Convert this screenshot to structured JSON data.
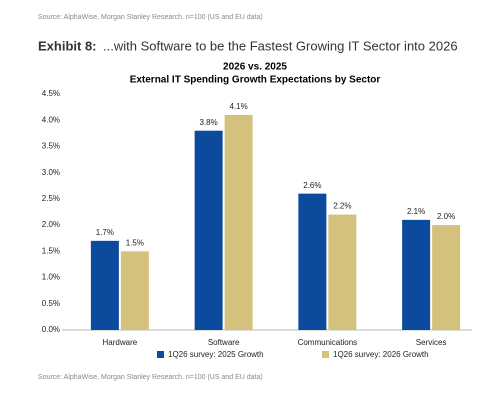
{
  "source_top": "Source: AlphaWise, Morgan Stanley Research. n=100 (US and EU data)",
  "exhibit_label": "Exhibit 8:",
  "exhibit_title": "...with Software to be the Fastest Growing IT Sector into 2026",
  "chart_data": {
    "type": "bar",
    "title": "2026 vs. 2025",
    "subtitle": "External IT Spending Growth Expectations by Sector",
    "categories": [
      "Hardware",
      "Software",
      "Communications",
      "Services"
    ],
    "series": [
      {
        "name": "1Q26 survey: 2025 Growth",
        "color": "#0b4a9c",
        "values": [
          1.7,
          3.8,
          2.6,
          2.1
        ],
        "value_labels": [
          "1.7%",
          "3.8%",
          "2.6%",
          "2.1%"
        ]
      },
      {
        "name": "1Q26 survey: 2026 Growth",
        "color": "#d3c17c",
        "values": [
          1.5,
          4.1,
          2.2,
          2.0
        ],
        "value_labels": [
          "1.5%",
          "4.1%",
          "2.2%",
          "2.0%"
        ]
      }
    ],
    "ylim": [
      0,
      4.5
    ],
    "yticks": [
      {
        "value": 0,
        "label": "0.0%"
      },
      {
        "value": 0.5,
        "label": "0.5%"
      },
      {
        "value": 1,
        "label": "1.0%"
      },
      {
        "value": 1.5,
        "label": "1.5%"
      },
      {
        "value": 2,
        "label": "2.0%"
      },
      {
        "value": 2.5,
        "label": "2.5%"
      },
      {
        "value": 3,
        "label": "3.0%"
      },
      {
        "value": 3.5,
        "label": "3.5%"
      },
      {
        "value": 4,
        "label": "4.0%"
      },
      {
        "value": 4.5,
        "label": "4.5%"
      }
    ],
    "grid": false
  },
  "source_bottom": "Source: AlphaWise, Morgan Stanley Research. n=100 (US and EU data)"
}
